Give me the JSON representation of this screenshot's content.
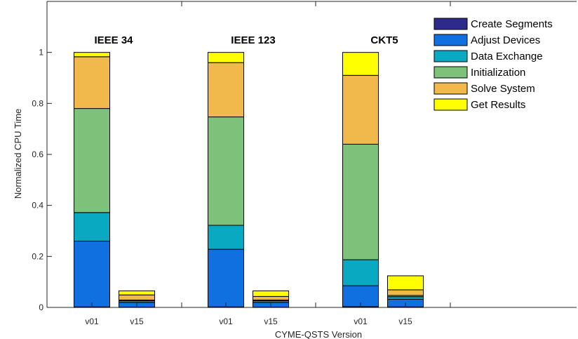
{
  "chart_data": {
    "type": "bar",
    "stacked": true,
    "xlabel": "CYME-QSTS Version",
    "ylabel": "Normalized CPU Time",
    "ylim": [
      0,
      1.2
    ],
    "yticks": [
      0,
      0.2,
      0.4,
      0.6,
      0.8,
      1
    ],
    "ytick_labels": [
      "0",
      "0.2",
      "0.4",
      "0.6",
      "0.8",
      "1"
    ],
    "legend_position": "top-right",
    "grid": false,
    "groups": [
      {
        "label": "IEEE 34",
        "categories": [
          "v01",
          "v15"
        ]
      },
      {
        "label": "IEEE 123",
        "categories": [
          "v01",
          "v15"
        ]
      },
      {
        "label": "CKT5",
        "categories": [
          "v01",
          "v15"
        ]
      }
    ],
    "bars": [
      {
        "group": "IEEE 34",
        "version": "v01"
      },
      {
        "group": "IEEE 34",
        "version": "v15"
      },
      {
        "group": "IEEE 123",
        "version": "v01"
      },
      {
        "group": "IEEE 123",
        "version": "v15"
      },
      {
        "group": "CKT5",
        "version": "v01"
      },
      {
        "group": "CKT5",
        "version": "v15"
      }
    ],
    "series": [
      {
        "name": "Create Segments",
        "color": "#2e2a8c",
        "values": [
          0.002,
          0.001,
          0.002,
          0.001,
          0.003,
          0.002
        ]
      },
      {
        "name": "Adjust Devices",
        "color": "#1170e0",
        "values": [
          0.258,
          0.019,
          0.226,
          0.019,
          0.082,
          0.03
        ]
      },
      {
        "name": "Data Exchange",
        "color": "#0aa9c2",
        "values": [
          0.112,
          0.006,
          0.094,
          0.006,
          0.102,
          0.01
        ]
      },
      {
        "name": "Initialization",
        "color": "#7ec17b",
        "values": [
          0.408,
          0.003,
          0.425,
          0.003,
          0.453,
          0.005
        ]
      },
      {
        "name": "Solve System",
        "color": "#f1b84c",
        "values": [
          0.203,
          0.02,
          0.213,
          0.014,
          0.27,
          0.022
        ]
      },
      {
        "name": "Get Results",
        "color": "#ffff00",
        "values": [
          0.017,
          0.016,
          0.04,
          0.022,
          0.09,
          0.055
        ]
      }
    ]
  }
}
